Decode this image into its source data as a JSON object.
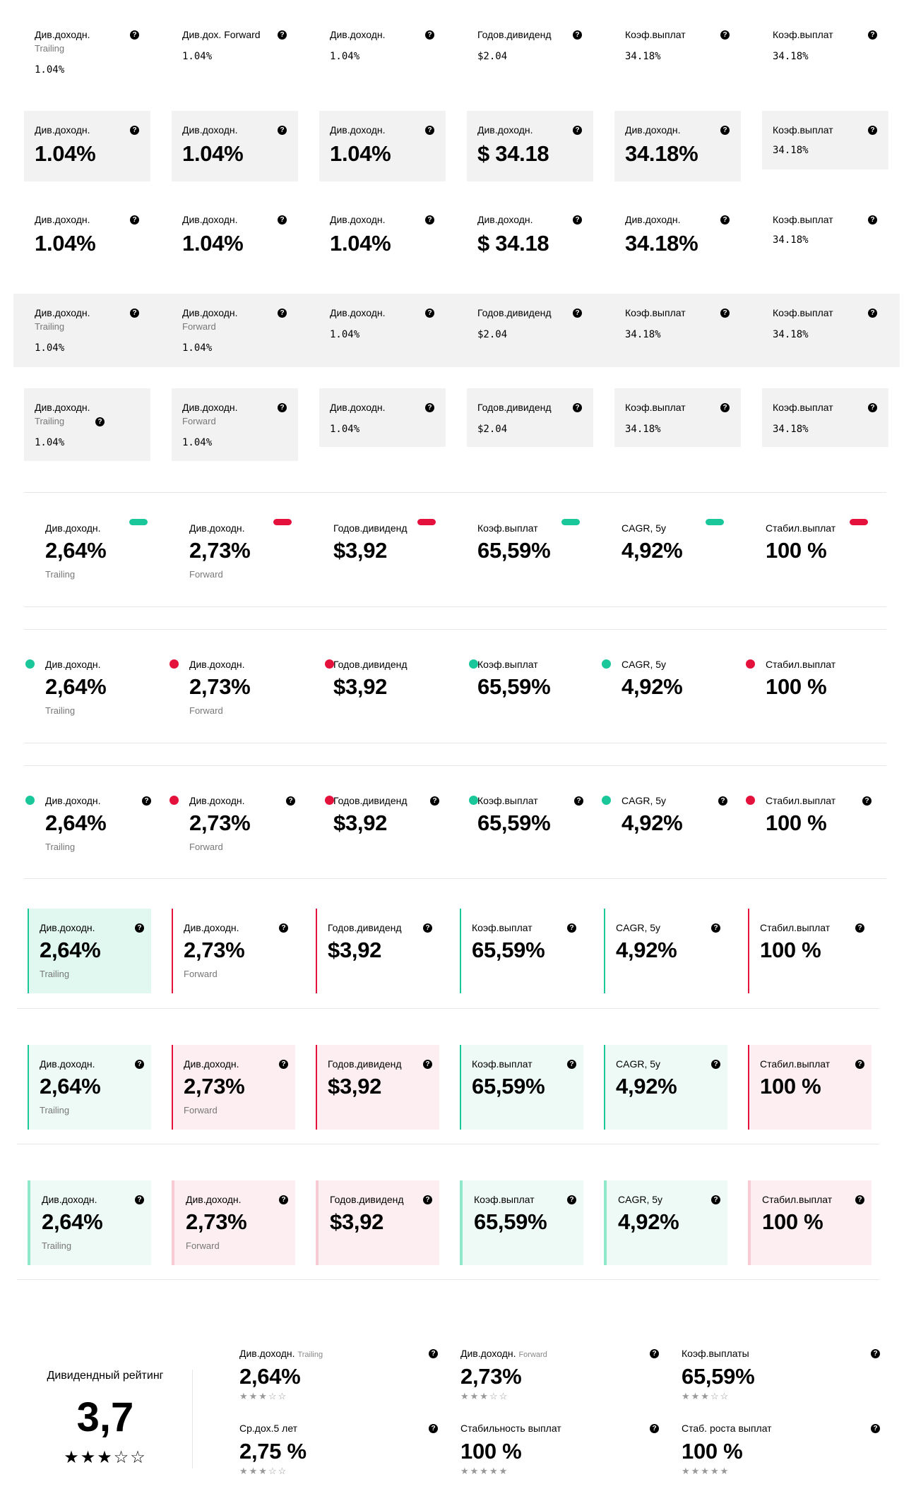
{
  "help_glyph": "?",
  "colors": {
    "green": "#19c79a",
    "red": "#e4113d",
    "green_bg": "#e0f8ef",
    "green_bg_light": "#eefaf5",
    "red_bg": "#fdeef1",
    "green_bar_light": "#8fe8ca",
    "red_bar_light": "#f8cbd4"
  },
  "r1": [
    {
      "label": "Див.доходн.",
      "sub": "Trailing",
      "value": "1.04%"
    },
    {
      "label": "Див.дох. Forward",
      "value": "1.04%"
    },
    {
      "label": "Див.доходн.",
      "value": "1.04%"
    },
    {
      "label": "Годов.дивиденд",
      "value": "$2.04"
    },
    {
      "label": "Коэф.выплат",
      "value": "34.18%"
    },
    {
      "label": "Коэф.выплат",
      "value": "34.18%"
    }
  ],
  "r2": [
    {
      "label": "Див.доходн.",
      "value": "1.04%"
    },
    {
      "label": "Див.доходн.",
      "value": "1.04%"
    },
    {
      "label": "Див.доходн.",
      "value": "1.04%"
    },
    {
      "label": "Див.доходн.",
      "value": "$ 34.18"
    },
    {
      "label": "Див.доходн.",
      "value": "34.18%"
    },
    {
      "label": "Коэф.выплат",
      "value": "34.18%"
    }
  ],
  "r4": [
    {
      "label": "Див.доходн.",
      "sub": "Trailing",
      "value": "1.04%"
    },
    {
      "label": "Див.доходн.",
      "sub": "Forward",
      "value": "1.04%"
    },
    {
      "label": "Див.доходн.",
      "value": "1.04%"
    },
    {
      "label": "Годов.дивиденд",
      "value": "$2.04"
    },
    {
      "label": "Коэф.выплат",
      "value": "34.18%"
    },
    {
      "label": "Коэф.выплат",
      "value": "34.18%"
    }
  ],
  "metrics": [
    {
      "label": "Див.доходн.",
      "value": "2,64%",
      "sub": "Trailing",
      "tone": "green"
    },
    {
      "label": "Див.доходн.",
      "value": "2,73%",
      "sub": "Forward",
      "tone": "red"
    },
    {
      "label": "Годов.дивиденд",
      "value": "$3,92",
      "tone": "red"
    },
    {
      "label": "Коэф.выплат",
      "value": "65,59%",
      "tone": "green"
    },
    {
      "label": "CAGR, 5y",
      "value": "4,92%",
      "tone": "green"
    },
    {
      "label": "Стабил.выплат",
      "value": "100 %",
      "tone": "red"
    }
  ],
  "rating": {
    "title": "Дивидендный рейтинг",
    "score": "3,7",
    "stars": "★★★☆☆",
    "items": [
      {
        "label": "Див.доходн.",
        "tag": "Trailing",
        "value": "2,64%",
        "stars": "★★★☆☆"
      },
      {
        "label": "Див.доходн.",
        "tag": "Forward",
        "value": "2,73%",
        "stars": "★★★☆☆"
      },
      {
        "label": "Коэф.выплаты",
        "tag": "",
        "value": "65,59%",
        "stars": "★★★☆☆"
      },
      {
        "label": "Ср.дох.5 лет",
        "tag": "",
        "value": "2,75 %",
        "stars": "★★★☆☆"
      },
      {
        "label": "Стабильность выплат",
        "tag": "",
        "value": "100 %",
        "stars": "★★★★★"
      },
      {
        "label": "Стаб. роста выплат",
        "tag": "",
        "value": "100 %",
        "stars": "★★★★★"
      }
    ]
  }
}
